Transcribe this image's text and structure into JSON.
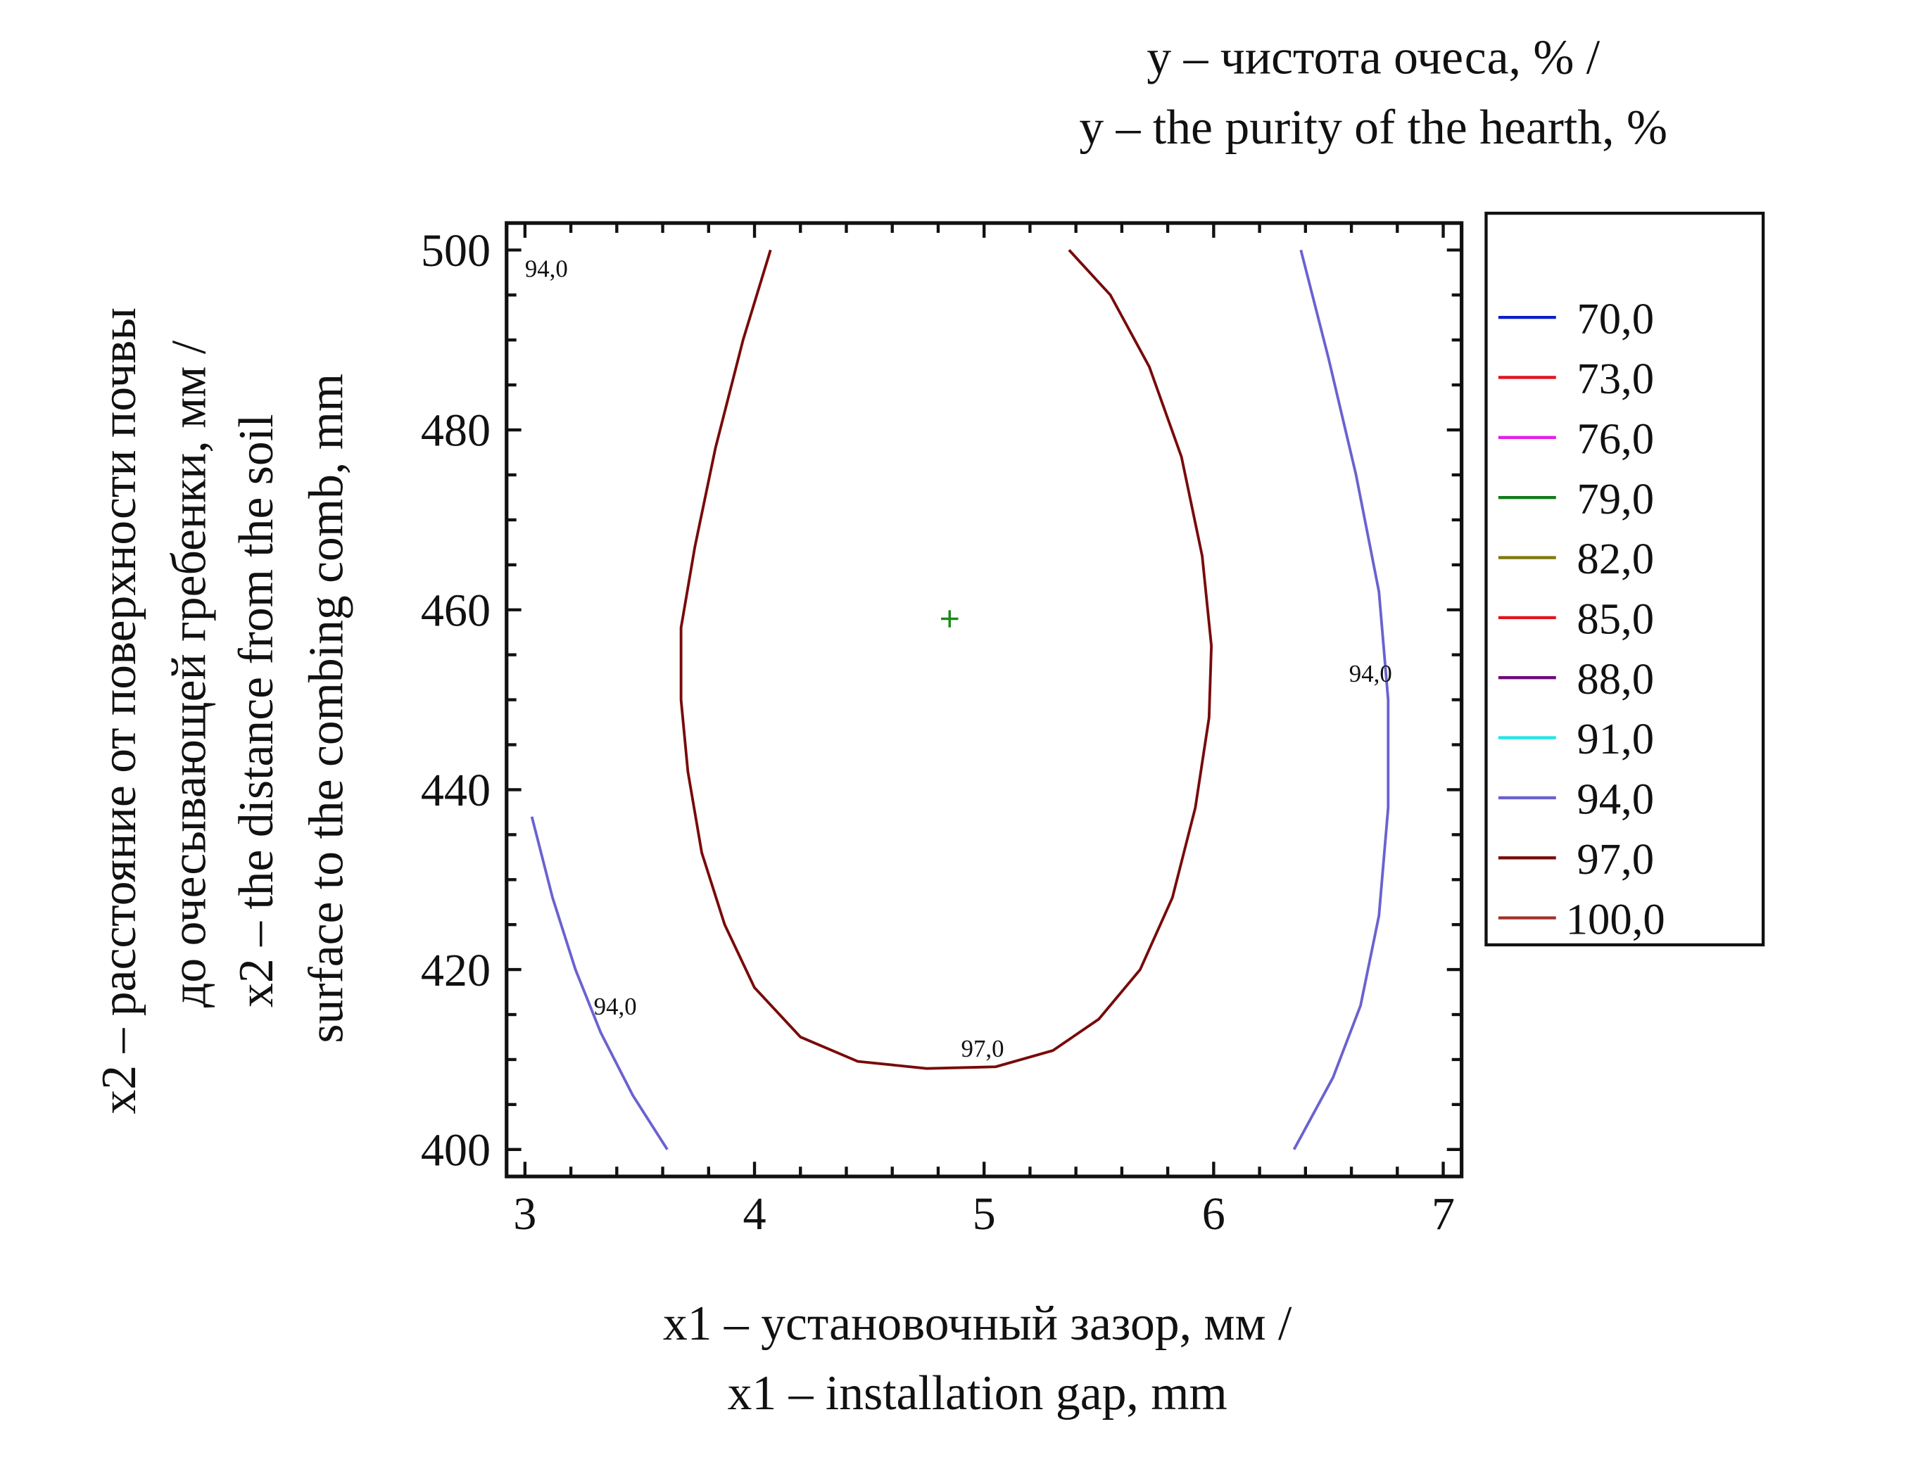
{
  "chart_data": {
    "type": "contour",
    "title": [
      "y – чистота очеса, % /",
      "y – the purity of the hearth, %"
    ],
    "xlabel": [
      "x1 – установочный зазор, мм /",
      "x1 – installation gap, mm"
    ],
    "ylabel": [
      "x2 – расстояние от поверхности почвы",
      "до очесывающей гребенки, мм /",
      "x2 – the distance from the soil",
      "surface to the combing comb, mm"
    ],
    "xlim": [
      2.92,
      7.08
    ],
    "ylim": [
      397,
      503
    ],
    "xticks": [
      "3",
      "4",
      "5",
      "6",
      "7"
    ],
    "xtick_values": [
      3,
      4,
      5,
      6,
      7
    ],
    "yticks": [
      "400",
      "420",
      "440",
      "460",
      "480",
      "500"
    ],
    "ytick_values": [
      400,
      420,
      440,
      460,
      480,
      500
    ],
    "legend": [
      {
        "label": "70,0",
        "color": "#0a1fc8"
      },
      {
        "label": "73,0",
        "color": "#e0141e"
      },
      {
        "label": "76,0",
        "color": "#e61ee6"
      },
      {
        "label": "79,0",
        "color": "#127a1a"
      },
      {
        "label": "82,0",
        "color": "#7d7a0e"
      },
      {
        "label": "85,0",
        "color": "#e0141e"
      },
      {
        "label": "88,0",
        "color": "#6e0a78"
      },
      {
        "label": "91,0",
        "color": "#22e6e6"
      },
      {
        "label": "94,0",
        "color": "#6a62d0"
      },
      {
        "label": "97,0",
        "color": "#780a0a"
      },
      {
        "label": "100,0",
        "color": "#a0302a"
      }
    ],
    "legend_placement": "right",
    "contours": [
      {
        "level": "97,0",
        "color": "#780a0a",
        "points": [
          [
            4.07,
            500
          ],
          [
            3.95,
            490
          ],
          [
            3.83,
            478
          ],
          [
            3.74,
            467
          ],
          [
            3.68,
            458
          ],
          [
            3.68,
            450
          ],
          [
            3.71,
            442
          ],
          [
            3.77,
            433
          ],
          [
            3.87,
            425
          ],
          [
            4.0,
            418
          ],
          [
            4.2,
            412.5
          ],
          [
            4.45,
            409.8
          ],
          [
            4.75,
            409
          ],
          [
            5.05,
            409.2
          ],
          [
            5.3,
            411
          ],
          [
            5.5,
            414.5
          ],
          [
            5.68,
            420
          ],
          [
            5.82,
            428
          ],
          [
            5.92,
            438
          ],
          [
            5.98,
            448
          ],
          [
            5.99,
            456
          ],
          [
            5.95,
            466
          ],
          [
            5.86,
            477
          ],
          [
            5.72,
            487
          ],
          [
            5.55,
            495
          ],
          [
            5.37,
            500
          ]
        ]
      },
      {
        "level": "94,0",
        "color": "#6a62d0",
        "points": [
          [
            6.38,
            500
          ],
          [
            6.5,
            488
          ],
          [
            6.62,
            475
          ],
          [
            6.72,
            462
          ],
          [
            6.76,
            450
          ],
          [
            6.76,
            438
          ],
          [
            6.72,
            426
          ],
          [
            6.64,
            416
          ],
          [
            6.52,
            408
          ],
          [
            6.35,
            400
          ]
        ]
      },
      {
        "level": "94,0",
        "color": "#6a62d0",
        "points": [
          [
            3.03,
            437
          ],
          [
            3.12,
            428
          ],
          [
            3.22,
            420
          ],
          [
            3.33,
            413
          ],
          [
            3.47,
            406
          ],
          [
            3.62,
            400
          ]
        ]
      }
    ],
    "contour_labels": [
      {
        "text": "94,0",
        "x": 3.0,
        "y": 497
      },
      {
        "text": "94,0",
        "x": 3.3,
        "y": 415
      },
      {
        "text": "94,0",
        "x": 6.59,
        "y": 452
      },
      {
        "text": "97,0",
        "x": 4.9,
        "y": 410.3
      }
    ],
    "optimum_marker": {
      "x": 4.85,
      "y": 459,
      "color": "#1a8a1a"
    }
  }
}
